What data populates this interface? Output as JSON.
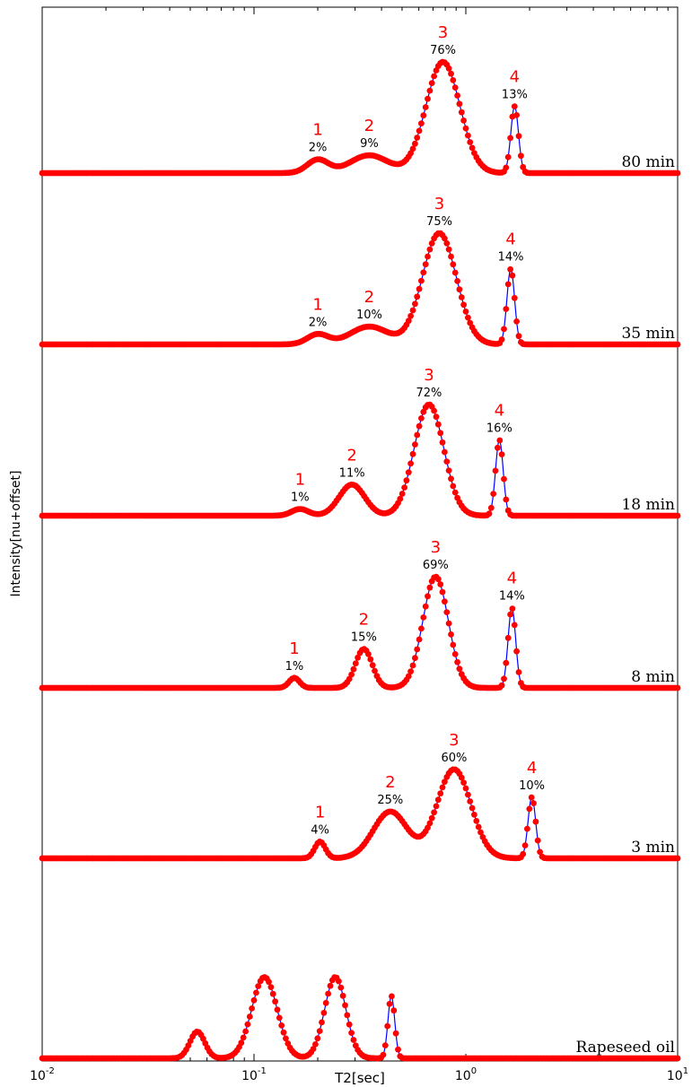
{
  "chart_data": {
    "type": "line",
    "xlabel": "T2[sec]",
    "ylabel": "Intensity[nu+offset]",
    "x_scale": "log",
    "xlim": [
      0.01,
      10
    ],
    "x_ticks": [
      {
        "value": 0.01,
        "base": "10",
        "exp": "-2"
      },
      {
        "value": 0.1,
        "base": "10",
        "exp": "-1"
      },
      {
        "value": 1,
        "base": "10",
        "exp": "0"
      },
      {
        "value": 10,
        "base": "10",
        "exp": "1"
      }
    ],
    "grid": false,
    "series_color": "#ff0000",
    "line_color": "#0000ff",
    "series": [
      {
        "label": "80 min",
        "peaks": [
          {
            "num": "1",
            "pct": "2%",
            "t2": 0.2,
            "height": 0.12,
            "width": 0.05
          },
          {
            "num": "2",
            "pct": "9%",
            "t2": 0.35,
            "height": 0.16,
            "width": 0.09
          },
          {
            "num": "3",
            "pct": "76%",
            "t2": 0.78,
            "height": 1.0,
            "width": 0.08
          },
          {
            "num": "4",
            "pct": "13%",
            "t2": 1.7,
            "height": 0.6,
            "width": 0.018
          }
        ]
      },
      {
        "label": "35 min",
        "peaks": [
          {
            "num": "1",
            "pct": "2%",
            "t2": 0.2,
            "height": 0.09,
            "width": 0.05
          },
          {
            "num": "2",
            "pct": "10%",
            "t2": 0.35,
            "height": 0.16,
            "width": 0.09
          },
          {
            "num": "3",
            "pct": "75%",
            "t2": 0.75,
            "height": 1.0,
            "width": 0.08
          },
          {
            "num": "4",
            "pct": "14%",
            "t2": 1.63,
            "height": 0.68,
            "width": 0.018
          }
        ]
      },
      {
        "label": "18 min",
        "peaks": [
          {
            "num": "1",
            "pct": "1%",
            "t2": 0.165,
            "height": 0.06,
            "width": 0.04
          },
          {
            "num": "2",
            "pct": "11%",
            "t2": 0.29,
            "height": 0.28,
            "width": 0.06
          },
          {
            "num": "3",
            "pct": "72%",
            "t2": 0.67,
            "height": 1.0,
            "width": 0.07
          },
          {
            "num": "4",
            "pct": "16%",
            "t2": 1.44,
            "height": 0.68,
            "width": 0.018
          }
        ]
      },
      {
        "label": "8 min",
        "peaks": [
          {
            "num": "1",
            "pct": "1%",
            "t2": 0.155,
            "height": 0.09,
            "width": 0.025
          },
          {
            "num": "2",
            "pct": "15%",
            "t2": 0.33,
            "height": 0.35,
            "width": 0.04
          },
          {
            "num": "3",
            "pct": "69%",
            "t2": 0.72,
            "height": 1.0,
            "width": 0.06
          },
          {
            "num": "4",
            "pct": "14%",
            "t2": 1.65,
            "height": 0.72,
            "width": 0.018
          }
        ]
      },
      {
        "label": "3 min",
        "peaks": [
          {
            "num": "1",
            "pct": "4%",
            "t2": 0.205,
            "height": 0.15,
            "width": 0.025
          },
          {
            "num": "2",
            "pct": "25%",
            "t2": 0.44,
            "height": 0.42,
            "width": 0.08
          },
          {
            "num": "3",
            "pct": "60%",
            "t2": 0.88,
            "height": 0.8,
            "width": 0.08
          },
          {
            "num": "4",
            "pct": "10%",
            "t2": 2.05,
            "height": 0.55,
            "width": 0.018
          }
        ]
      },
      {
        "label": "Rapeseed oil",
        "peaks": [
          {
            "num": "",
            "pct": "",
            "t2": 0.054,
            "height": 0.24,
            "width": 0.035
          },
          {
            "num": "",
            "pct": "",
            "t2": 0.112,
            "height": 0.73,
            "width": 0.06
          },
          {
            "num": "",
            "pct": "",
            "t2": 0.242,
            "height": 0.73,
            "width": 0.05
          },
          {
            "num": "",
            "pct": "",
            "t2": 0.445,
            "height": 0.56,
            "width": 0.016
          }
        ]
      }
    ]
  }
}
